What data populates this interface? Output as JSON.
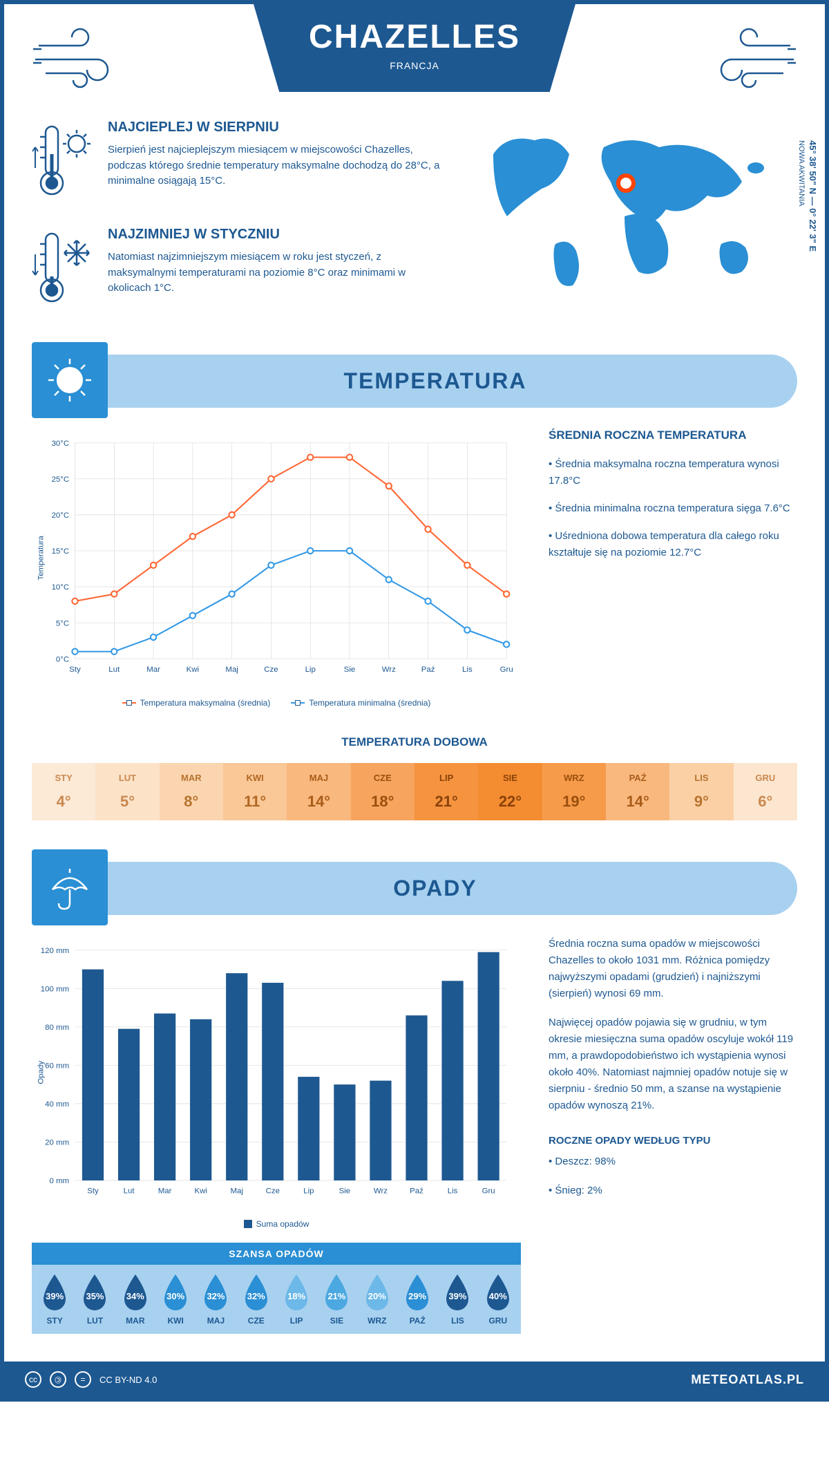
{
  "header": {
    "city": "CHAZELLES",
    "country": "FRANCJA"
  },
  "coords": "45° 38' 50\" N — 0° 22' 3\" E",
  "region": "NOWA AKWITANIA",
  "info": {
    "hot": {
      "title": "NAJCIEPLEJ W SIERPNIU",
      "text": "Sierpień jest najcieplejszym miesiącem w miejscowości Chazelles, podczas którego średnie temperatury maksymalne dochodzą do 28°C, a minimalne osiągają 15°C."
    },
    "cold": {
      "title": "NAJZIMNIEJ W STYCZNIU",
      "text": "Natomiast najzimniejszym miesiącem w roku jest styczeń, z maksymalnymi temperaturami na poziomie 8°C oraz minimami w okolicach 1°C."
    }
  },
  "sections": {
    "temp": "TEMPERATURA",
    "precip": "OPADY"
  },
  "months": [
    "Sty",
    "Lut",
    "Mar",
    "Kwi",
    "Maj",
    "Cze",
    "Lip",
    "Sie",
    "Wrz",
    "Paź",
    "Lis",
    "Gru"
  ],
  "months_upper": [
    "STY",
    "LUT",
    "MAR",
    "KWI",
    "MAJ",
    "CZE",
    "LIP",
    "SIE",
    "WRZ",
    "PAŹ",
    "LIS",
    "GRU"
  ],
  "temp_chart": {
    "ylabel": "Temperatura",
    "ymin": 0,
    "ymax": 30,
    "ystep": 5,
    "y_ticks": [
      "0°C",
      "5°C",
      "10°C",
      "15°C",
      "20°C",
      "25°C",
      "30°C"
    ],
    "max_series": [
      8,
      9,
      13,
      17,
      20,
      25,
      28,
      28,
      24,
      18,
      13,
      9
    ],
    "min_series": [
      1,
      1,
      3,
      6,
      9,
      13,
      15,
      15,
      11,
      8,
      4,
      2
    ],
    "max_color": "#ff6633",
    "min_color": "#3399e6",
    "grid_color": "#d0d0d0",
    "legend_max": "Temperatura maksymalna (średnia)",
    "legend_min": "Temperatura minimalna (średnia)"
  },
  "temp_side": {
    "title": "ŚREDNIA ROCZNA TEMPERATURA",
    "b1": "• Średnia maksymalna roczna temperatura wynosi 17.8°C",
    "b2": "• Średnia minimalna roczna temperatura sięga 7.6°C",
    "b3": "• Uśredniona dobowa temperatura dla całego roku kształtuje się na poziomie 12.7°C"
  },
  "daily": {
    "title": "TEMPERATURA DOBOWA",
    "values": [
      "4°",
      "5°",
      "8°",
      "11°",
      "14°",
      "18°",
      "21°",
      "22°",
      "19°",
      "14°",
      "9°",
      "6°"
    ],
    "bg_colors": [
      "#fce9d6",
      "#fce2c7",
      "#fbd5af",
      "#fac797",
      "#f9b87e",
      "#f7a45e",
      "#f5933f",
      "#f48c31",
      "#f69b4a",
      "#f9b87e",
      "#fbd0a5",
      "#fce6cf"
    ],
    "text_colors": [
      "#c98850",
      "#c98850",
      "#b8732f",
      "#b06722",
      "#a85c18",
      "#9a4f0d",
      "#8a4208",
      "#8a4208",
      "#9a4f0d",
      "#a85c18",
      "#b8732f",
      "#c98850"
    ]
  },
  "precip_chart": {
    "ylabel": "Opady",
    "ymin": 0,
    "ymax": 120,
    "ystep": 20,
    "y_ticks": [
      "0 mm",
      "20 mm",
      "40 mm",
      "60 mm",
      "80 mm",
      "100 mm",
      "120 mm"
    ],
    "values": [
      110,
      79,
      87,
      84,
      108,
      103,
      54,
      50,
      52,
      86,
      104,
      119
    ],
    "bar_color": "#1d5891",
    "legend": "Suma opadów"
  },
  "precip_side": {
    "p1": "Średnia roczna suma opadów w miejscowości Chazelles to około 1031 mm. Różnica pomiędzy najwyższymi opadami (grudzień) i najniższymi (sierpień) wynosi 69 mm.",
    "p2": "Najwięcej opadów pojawia się w grudniu, w tym okresie miesięczna suma opadów oscyluje wokół 119 mm, a prawdopodobieństwo ich wystąpienia wynosi około 40%. Natomiast najmniej opadów notuje się w sierpniu - średnio 50 mm, a szanse na wystąpienie opadów wynoszą 21%.",
    "type_title": "ROCZNE OPADY WEDŁUG TYPU",
    "type_rain": "• Deszcz: 98%",
    "type_snow": "• Śnieg: 2%"
  },
  "chance": {
    "title": "SZANSA OPADÓW",
    "values": [
      "39%",
      "35%",
      "34%",
      "30%",
      "32%",
      "32%",
      "18%",
      "21%",
      "20%",
      "29%",
      "39%",
      "40%"
    ],
    "colors": [
      "#1d5891",
      "#1d5891",
      "#1d5891",
      "#2a8fd4",
      "#2a8fd4",
      "#2a8fd4",
      "#6cb8e8",
      "#4ba8e0",
      "#6cb8e8",
      "#2a8fd4",
      "#1d5891",
      "#1d5891"
    ]
  },
  "footer": {
    "license": "CC BY-ND 4.0",
    "site": "METEOATLAS.PL"
  }
}
